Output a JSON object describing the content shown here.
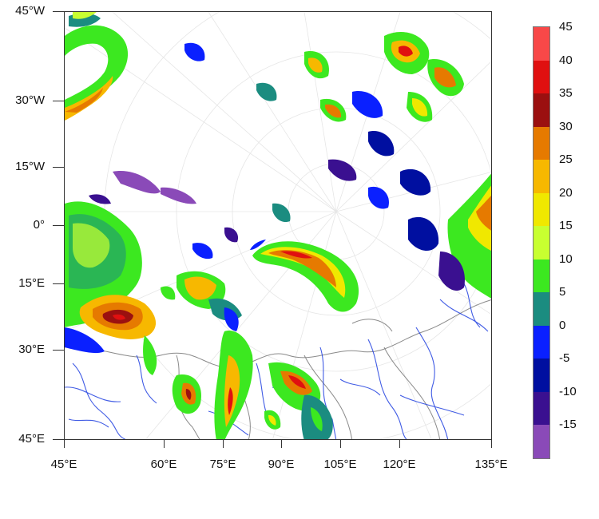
{
  "map": {
    "y_axis_labels": [
      "45°W",
      "30°W",
      "15°W",
      "0°",
      "15°E",
      "30°E",
      "45°E"
    ],
    "x_axis_labels": [
      "45°E",
      "60°E",
      "75°E",
      "90°E",
      "105°E",
      "120°E",
      "135°E"
    ],
    "projection": "polar stereographic",
    "background_color": "#ffffff",
    "coastline_color": "#8a8a8a",
    "river_color": "#1f3fe0"
  },
  "colorbar": {
    "labels": [
      "45",
      "40",
      "35",
      "30",
      "25",
      "20",
      "15",
      "10",
      "5",
      "0",
      "-5",
      "-10",
      "-15"
    ],
    "colors": [
      "#f84848",
      "#e01010",
      "#9b1010",
      "#e67a00",
      "#f7b800",
      "#f0e800",
      "#c8ff30",
      "#3ce820",
      "#1b8c80",
      "#0a20ff",
      "#000fa0",
      "#3a1090",
      "#8a4ab8"
    ]
  }
}
